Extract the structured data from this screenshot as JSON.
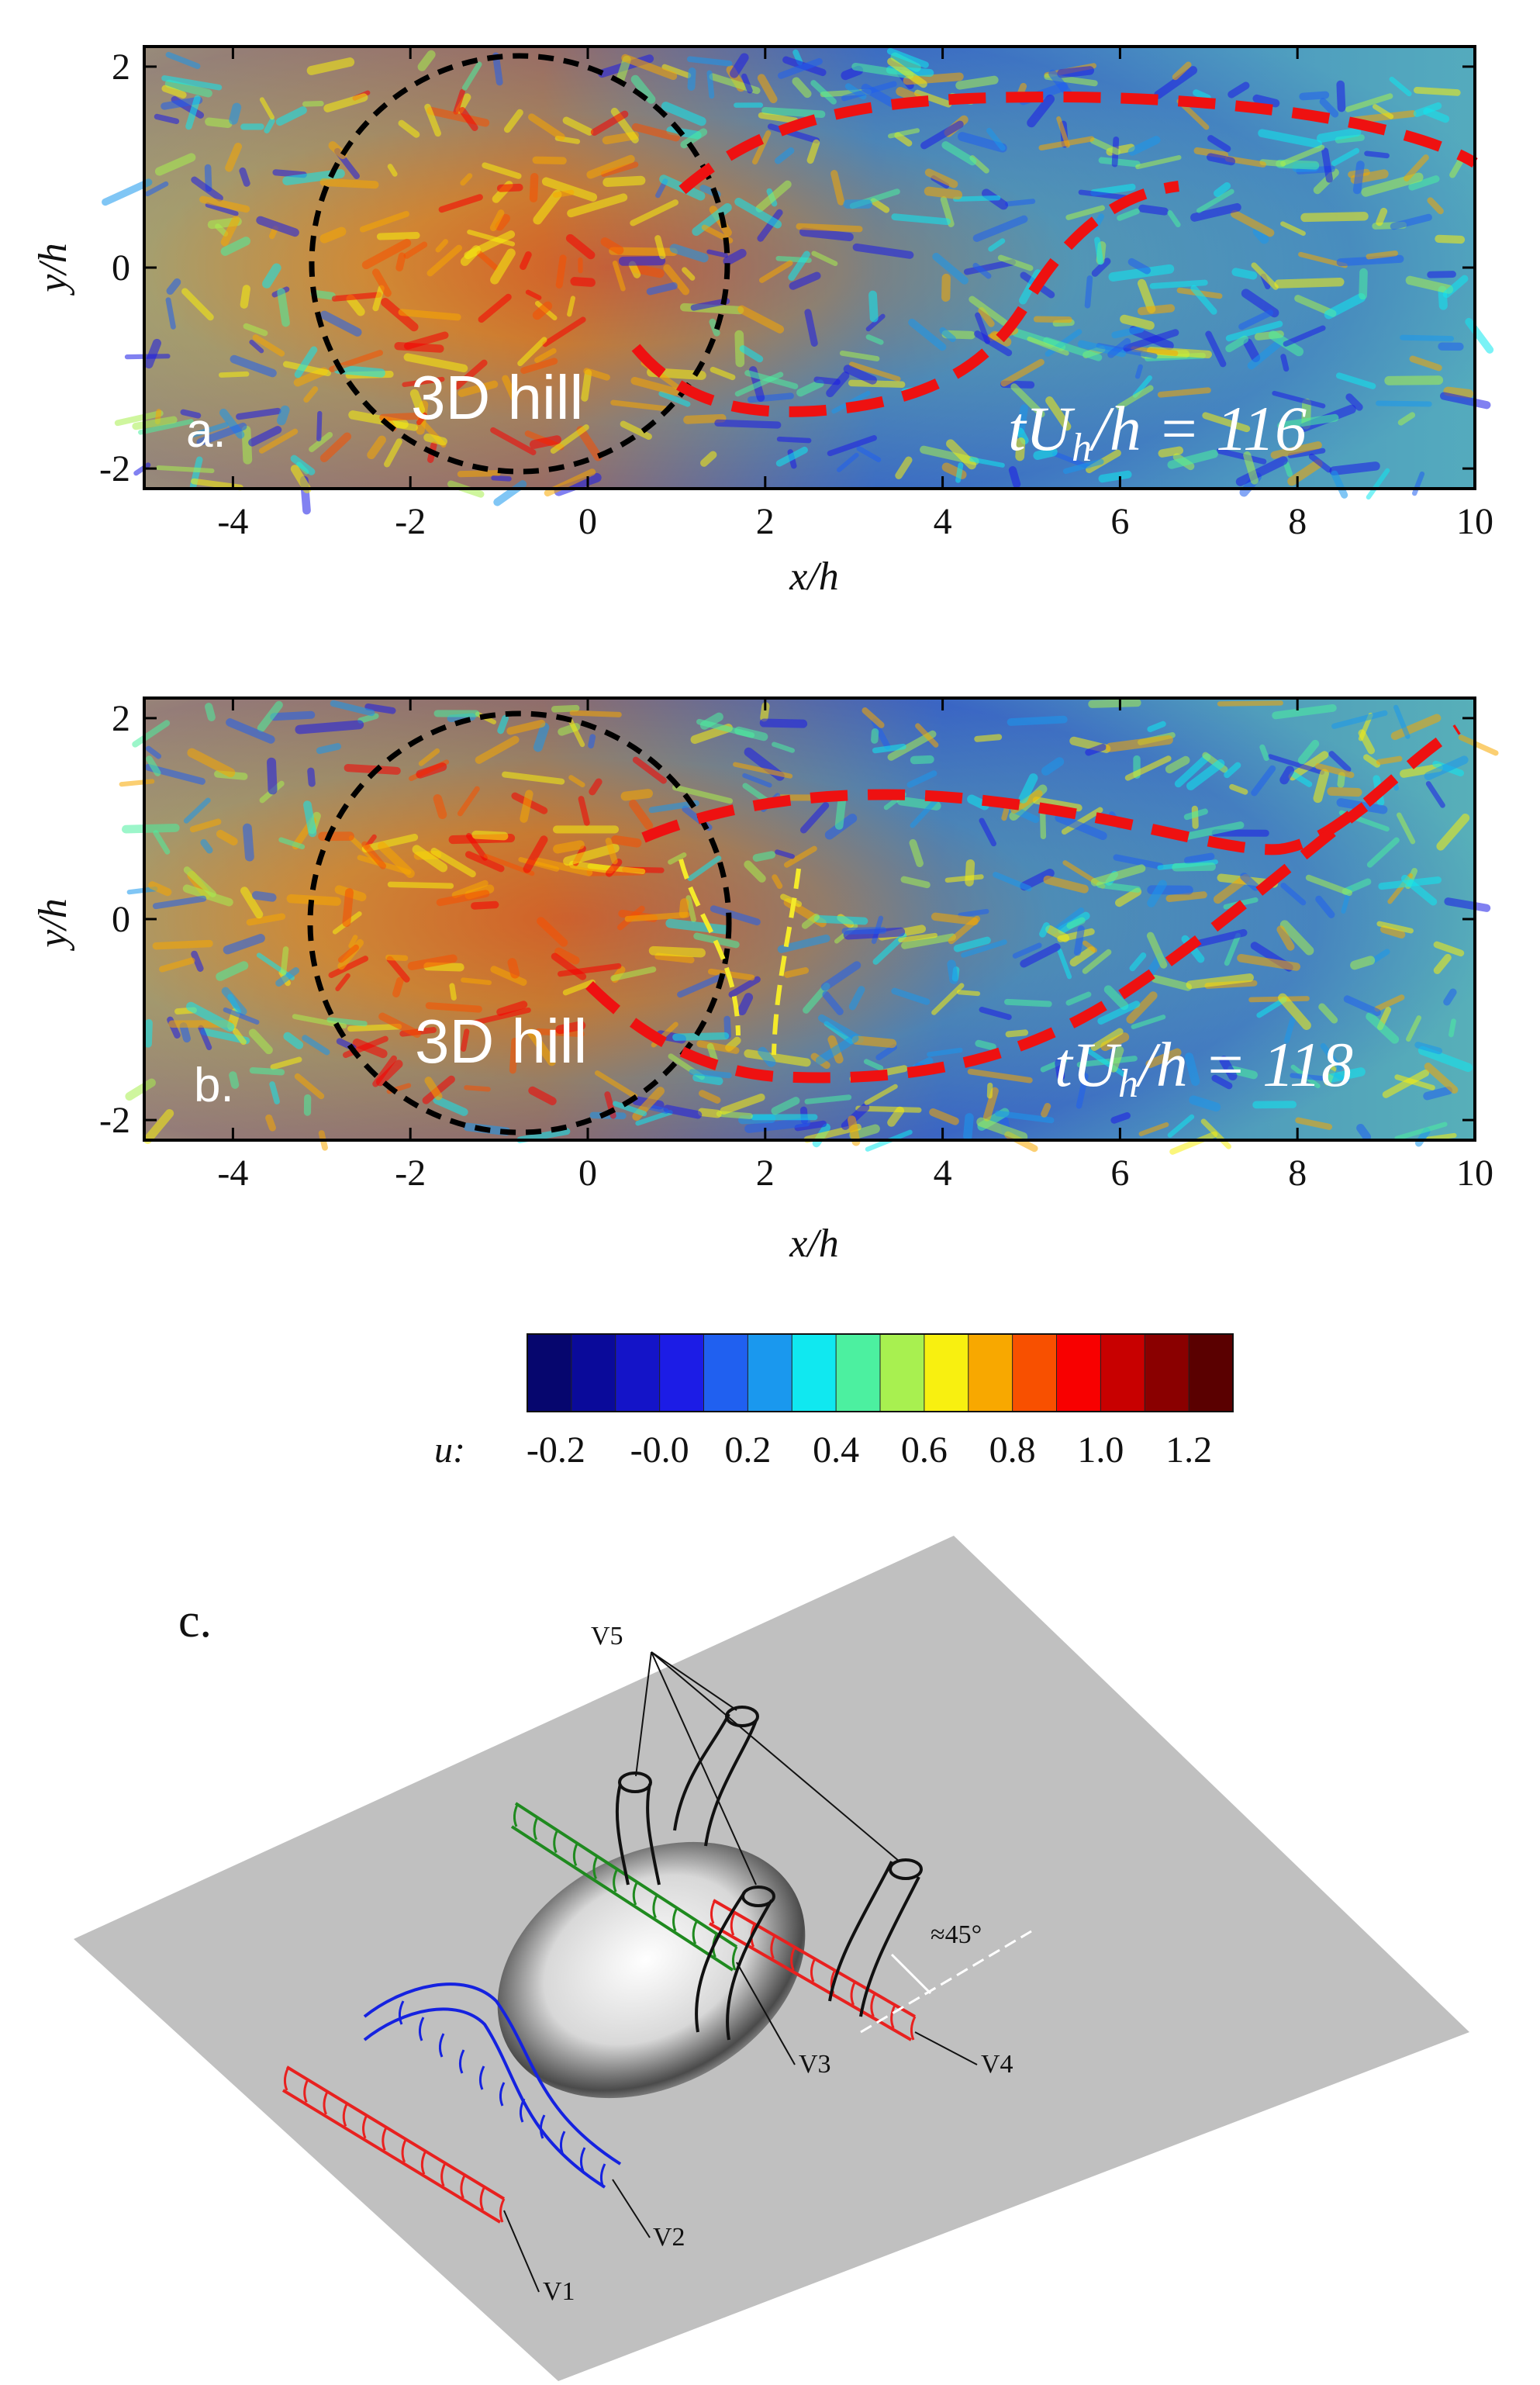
{
  "colors": {
    "colormap": [
      "#06066e",
      "#0a0a9a",
      "#1414c8",
      "#1c1ce6",
      "#2060f0",
      "#1a98ee",
      "#10e8f0",
      "#4cf0a0",
      "#a8f050",
      "#f8f010",
      "#f8a800",
      "#f85000",
      "#f80000",
      "#c80000",
      "#8a0000",
      "#5a0000"
    ],
    "dashed_red": "#ee1111",
    "dashed_black": "#000000",
    "dashed_yellow": "#f4ea2a",
    "sketch_red": "#e8211f",
    "sketch_blue": "#1522e0",
    "sketch_green": "#1f8a1f",
    "sketch_black": "#111111",
    "plane_gray": "#c0c0c0"
  },
  "panel_a": {
    "letter": "a.",
    "hill_label": "3D hill",
    "time_label": "tU_h/h = 116",
    "time_prefix": "tU",
    "time_sub": "h",
    "time_suffix": "/h = 116",
    "xlabel": "x/h",
    "ylabel": "y/h",
    "xticks": [
      "-4",
      "-2",
      "0",
      "2",
      "4",
      "6",
      "8",
      "10"
    ],
    "yticks": [
      "2",
      "0",
      "-2"
    ]
  },
  "panel_b": {
    "letter": "b.",
    "hill_label": "3D hill",
    "time_label": "tU_h/h = 118",
    "time_prefix": "tU",
    "time_sub": "h",
    "time_suffix": "/h = 118",
    "xlabel": "x/h",
    "ylabel": "y/h",
    "xticks": [
      "-4",
      "-2",
      "0",
      "2",
      "4",
      "6",
      "8",
      "10"
    ],
    "yticks": [
      "2",
      "0",
      "-2"
    ]
  },
  "colorbar": {
    "label": "u:",
    "ticks": [
      "-0.2",
      "-0.0",
      "0.2",
      "0.4",
      "0.6",
      "0.8",
      "1.0",
      "1.2"
    ]
  },
  "panel_c": {
    "letter": "c.",
    "vortices": [
      "V1",
      "V2",
      "V3",
      "V4",
      "V5"
    ],
    "angle_label": "≈45°"
  }
}
